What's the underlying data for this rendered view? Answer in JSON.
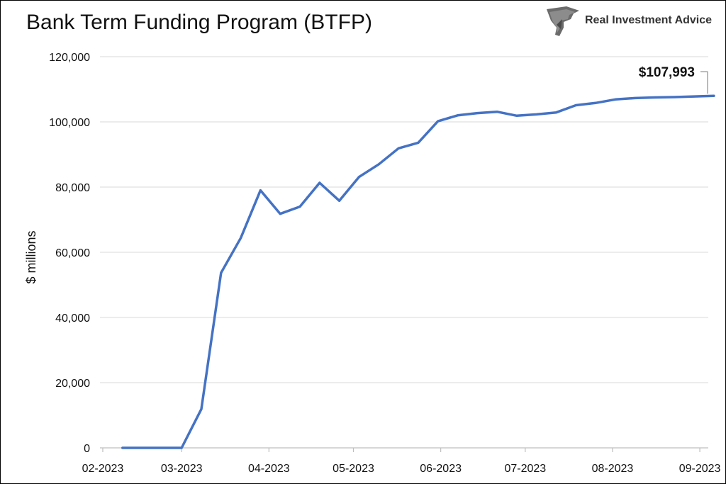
{
  "brand": {
    "name": "Real Investment Advice",
    "logo_icon": "eagle-head-icon"
  },
  "chart_data": {
    "type": "line",
    "title": "Bank Term Funding Program (BTFP)",
    "xlabel": "",
    "ylabel": "$ millions",
    "ylim": [
      0,
      120000
    ],
    "yticks": [
      0,
      20000,
      40000,
      60000,
      80000,
      100000,
      120000
    ],
    "ytick_labels": [
      "0",
      "20,000",
      "40,000",
      "60,000",
      "80,000",
      "100,000",
      "120,000"
    ],
    "xlim": [
      "2023-01-31",
      "2023-09-04"
    ],
    "xticks": [
      "2023-02-01",
      "2023-03-01",
      "2023-04-01",
      "2023-05-01",
      "2023-06-01",
      "2023-07-01",
      "2023-08-01",
      "2023-09-01"
    ],
    "xtick_labels": [
      "02-2023",
      "03-2023",
      "04-2023",
      "05-2023",
      "06-2023",
      "07-2023",
      "08-2023",
      "09-2023"
    ],
    "grid": "horizontal",
    "color": "#4472C4",
    "series": [
      {
        "name": "",
        "x": [
          "2023-02-08",
          "2023-02-15",
          "2023-02-22",
          "2023-03-01",
          "2023-03-08",
          "2023-03-15",
          "2023-03-22",
          "2023-03-29",
          "2023-04-05",
          "2023-04-12",
          "2023-04-19",
          "2023-04-26",
          "2023-05-03",
          "2023-05-10",
          "2023-05-17",
          "2023-05-24",
          "2023-05-31",
          "2023-06-07",
          "2023-06-14",
          "2023-06-21",
          "2023-06-28",
          "2023-07-05",
          "2023-07-12",
          "2023-07-19",
          "2023-07-26",
          "2023-08-02",
          "2023-08-09",
          "2023-08-16",
          "2023-08-23",
          "2023-08-30",
          "2023-09-06"
        ],
        "values": [
          0,
          0,
          0,
          0,
          11900,
          53700,
          64400,
          79000,
          71800,
          73998,
          81300,
          75800,
          83100,
          87000,
          91900,
          93600,
          100200,
          102000,
          102700,
          103100,
          101900,
          102300,
          102900,
          105100,
          105800,
          106900,
          107300,
          107500,
          107600,
          107800,
          107993
        ]
      }
    ],
    "annotation": {
      "label": "$107,993",
      "value": 107993
    }
  }
}
